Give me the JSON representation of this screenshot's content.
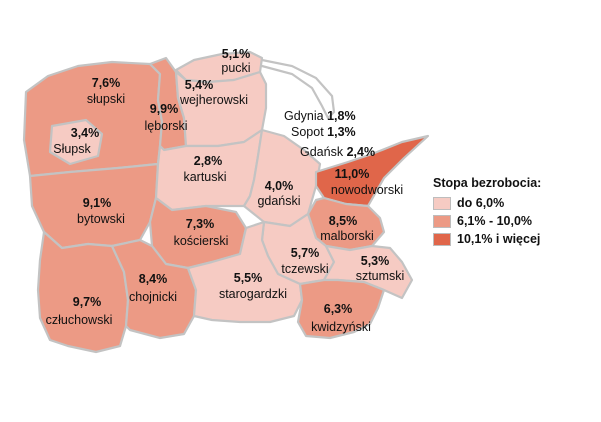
{
  "legend": {
    "title": "Stopa bezrobocia:",
    "items": [
      {
        "label": "do 6,0%",
        "color": "#f6cbc3"
      },
      {
        "label": "6,1% - 10,0%",
        "color": "#ec9a85"
      },
      {
        "label": "10,1% i więcej",
        "color": "#e0664a"
      }
    ]
  },
  "regions": [
    {
      "id": "pucki",
      "name": "pucki",
      "value": "5,1%",
      "class": 0
    },
    {
      "id": "wejherowski",
      "name": "wejherowski",
      "value": "5,4%",
      "class": 0
    },
    {
      "id": "slupski",
      "name": "słupski",
      "value": "7,6%",
      "class": 1
    },
    {
      "id": "leborski",
      "name": "lęborski",
      "value": "9,9%",
      "class": 1
    },
    {
      "id": "slupsk",
      "name": "Słupsk",
      "value": "3,4%",
      "class": 0
    },
    {
      "id": "kartuski",
      "name": "kartuski",
      "value": "2,8%",
      "class": 0
    },
    {
      "id": "gdanski",
      "name": "gdański",
      "value": "4,0%",
      "class": 0
    },
    {
      "id": "nowodworski",
      "name": "nowodworski",
      "value": "11,0%",
      "class": 2
    },
    {
      "id": "bytowski",
      "name": "bytowski",
      "value": "9,1%",
      "class": 1
    },
    {
      "id": "koscierski",
      "name": "kościerski",
      "value": "7,3%",
      "class": 1
    },
    {
      "id": "malborski",
      "name": "malborski",
      "value": "8,5%",
      "class": 1
    },
    {
      "id": "tczewski",
      "name": "tczewski",
      "value": "5,7%",
      "class": 0
    },
    {
      "id": "sztumski",
      "name": "sztumski",
      "value": "5,3%",
      "class": 0
    },
    {
      "id": "czluchowski",
      "name": "człuchowski",
      "value": "9,7%",
      "class": 1
    },
    {
      "id": "chojnicki",
      "name": "chojnicki",
      "value": "8,4%",
      "class": 1
    },
    {
      "id": "starogardzki",
      "name": "starogardzki",
      "value": "5,5%",
      "class": 0
    },
    {
      "id": "kwidzynski",
      "name": "kwidzyński",
      "value": "6,3%",
      "class": 1
    }
  ],
  "cities": [
    {
      "name": "Gdynia",
      "value": "1,8%"
    },
    {
      "name": "Sopot",
      "value": "1,3%"
    },
    {
      "name": "Gdańsk",
      "value": "2,4%"
    }
  ]
}
